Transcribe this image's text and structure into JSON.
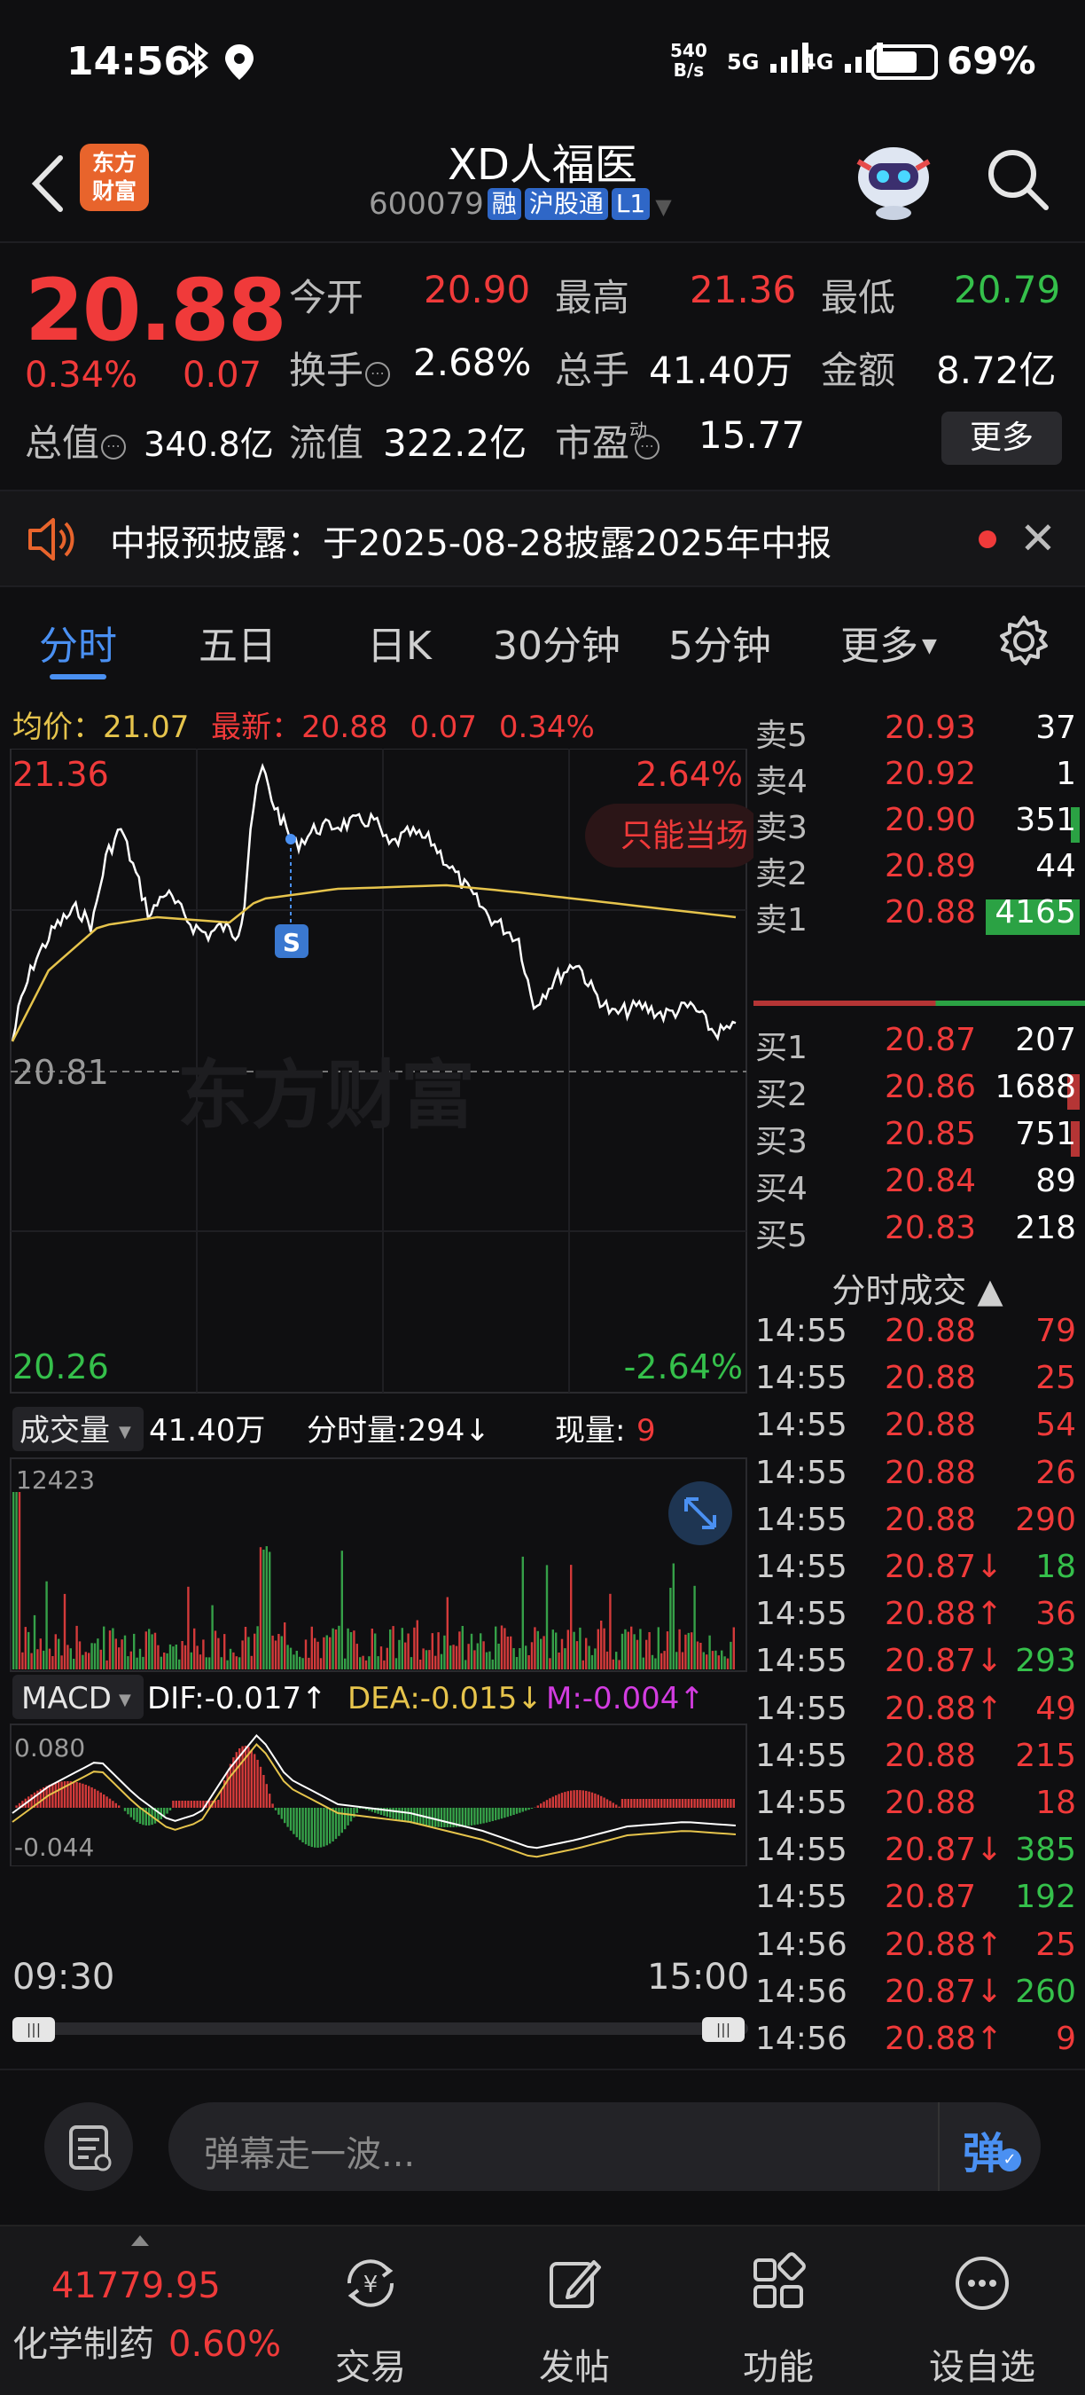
{
  "status_bar": {
    "time": "14:56",
    "net_speed_top": "540",
    "net_speed_bottom": "B/s",
    "sig1": "5G",
    "sig2": "4G",
    "battery": "69%"
  },
  "header": {
    "stock_name": "XD人福医",
    "code": "600079",
    "tag_margin": "融",
    "tag_connect": "沪股通",
    "tag_level": "L1",
    "logo_line1": "东方",
    "logo_line2": "财富"
  },
  "quote": {
    "price": "20.88",
    "change_pct": "0.34%",
    "change_val": "0.07",
    "open_label": "今开",
    "open": "20.90",
    "high_label": "最高",
    "high": "21.36",
    "low_label": "最低",
    "low": "20.79",
    "turnover_label": "换手",
    "turnover": "2.68%",
    "volume_label": "总手",
    "volume": "41.40万",
    "amount_label": "金额",
    "amount": "8.72亿",
    "mcap_label": "总值",
    "mcap": "340.8亿",
    "float_label": "流值",
    "float": "322.2亿",
    "pe_label": "市盈",
    "pe_sup": "动",
    "pe": "15.77",
    "more": "更多"
  },
  "notice": {
    "text": "中报预披露：于2025-08-28披露2025年中报"
  },
  "tabs": [
    "分时",
    "五日",
    "日K",
    "30分钟",
    "5分钟",
    "更多"
  ],
  "intraday": {
    "avg_label": "均价：",
    "avg": "21.07",
    "latest_label": "最新：",
    "latest": "20.88",
    "latest_chg": "0.07",
    "latest_pct": "0.34%",
    "y_high": "21.36",
    "y_high_pct": "2.64%",
    "y_mid": "20.81",
    "y_low": "20.26",
    "y_low_pct": "-2.64%",
    "watermark": "东方财富",
    "only_label": "只能当场",
    "signal": "S",
    "vol_select": "成交量",
    "vol_total": "41.40万",
    "vol_minute": "分时量:294↓",
    "vol_now_label": "现量:",
    "vol_now": "9",
    "vol_max": "12423",
    "macd_select": "MACD",
    "dif": "DIF:-0.017↑",
    "dea": "DEA:-0.015↓",
    "m": "M:-0.004↑",
    "macd_top": "0.080",
    "macd_bottom": "-0.044",
    "time_start": "09:30",
    "time_end": "15:00"
  },
  "order_book": {
    "asks": [
      {
        "label": "卖5",
        "price": "20.93",
        "vol": "37"
      },
      {
        "label": "卖4",
        "price": "20.92",
        "vol": "1"
      },
      {
        "label": "卖3",
        "price": "20.90",
        "vol": "351"
      },
      {
        "label": "卖2",
        "price": "20.89",
        "vol": "44"
      },
      {
        "label": "卖1",
        "price": "20.88",
        "vol": "4165"
      }
    ],
    "bids": [
      {
        "label": "买1",
        "price": "20.87",
        "vol": "207"
      },
      {
        "label": "买2",
        "price": "20.86",
        "vol": "1688"
      },
      {
        "label": "买3",
        "price": "20.85",
        "vol": "751"
      },
      {
        "label": "买4",
        "price": "20.84",
        "vol": "89"
      },
      {
        "label": "买5",
        "price": "20.83",
        "vol": "218"
      }
    ]
  },
  "trades_title": "分时成交 ▲",
  "trades": [
    {
      "time": "14:55",
      "price": "20.88",
      "vol": "79",
      "pc": "red",
      "vc": "red"
    },
    {
      "time": "14:55",
      "price": "20.88",
      "vol": "25",
      "pc": "red",
      "vc": "red"
    },
    {
      "time": "14:55",
      "price": "20.88",
      "vol": "54",
      "pc": "red",
      "vc": "red"
    },
    {
      "time": "14:55",
      "price": "20.88",
      "vol": "26",
      "pc": "red",
      "vc": "red"
    },
    {
      "time": "14:55",
      "price": "20.88",
      "vol": "290",
      "pc": "red",
      "vc": "red"
    },
    {
      "time": "14:55",
      "price": "20.87↓",
      "vol": "18",
      "pc": "red",
      "vc": "green"
    },
    {
      "time": "14:55",
      "price": "20.88↑",
      "vol": "36",
      "pc": "red",
      "vc": "red"
    },
    {
      "time": "14:55",
      "price": "20.87↓",
      "vol": "293",
      "pc": "red",
      "vc": "green"
    },
    {
      "time": "14:55",
      "price": "20.88↑",
      "vol": "49",
      "pc": "red",
      "vc": "red"
    },
    {
      "time": "14:55",
      "price": "20.88",
      "vol": "215",
      "pc": "red",
      "vc": "red"
    },
    {
      "time": "14:55",
      "price": "20.88",
      "vol": "18",
      "pc": "red",
      "vc": "red"
    },
    {
      "time": "14:55",
      "price": "20.87↓",
      "vol": "385",
      "pc": "red",
      "vc": "green"
    },
    {
      "time": "14:55",
      "price": "20.87",
      "vol": "192",
      "pc": "red",
      "vc": "green"
    },
    {
      "time": "14:56",
      "price": "20.88↑",
      "vol": "25",
      "pc": "red",
      "vc": "red"
    },
    {
      "time": "14:56",
      "price": "20.87↓",
      "vol": "260",
      "pc": "red",
      "vc": "green"
    },
    {
      "time": "14:56",
      "price": "20.88↑",
      "vol": "9",
      "pc": "red",
      "vc": "red"
    }
  ],
  "danmu": {
    "placeholder": "弹幕走一波...",
    "send": "弹"
  },
  "bottom_nav": {
    "index_value": "41779.95",
    "index_name": "化学制药",
    "index_pct": "0.60%",
    "items": [
      {
        "label": "交易",
        "icon": "trade-icon"
      },
      {
        "label": "发帖",
        "icon": "post-icon"
      },
      {
        "label": "功能",
        "icon": "function-icon"
      },
      {
        "label": "设自选",
        "icon": "more-icon"
      }
    ]
  },
  "colors": {
    "up": "#f03a3a",
    "down": "#35c04b",
    "avg": "#e6c44c",
    "accent": "#4a90f2"
  }
}
